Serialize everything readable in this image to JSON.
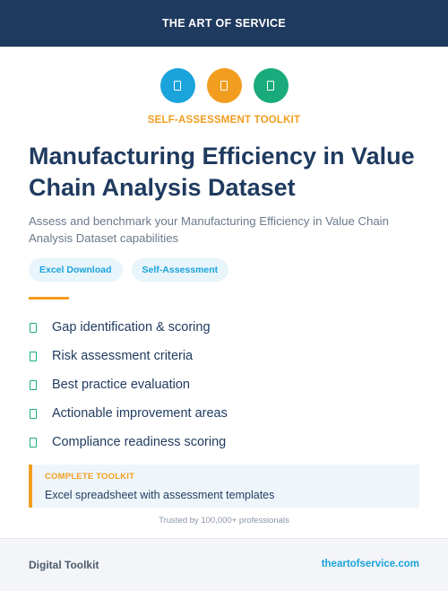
{
  "header": {
    "brand": "THE ART OF SERVICE"
  },
  "icons": [
    {
      "name": "document-icon",
      "color": "#1ba3dc"
    },
    {
      "name": "document-icon",
      "color": "#f29d1f"
    },
    {
      "name": "document-icon",
      "color": "#1aab7c"
    }
  ],
  "kicker": "SELF-ASSESSMENT TOOLKIT",
  "title": "Manufacturing Efficiency in Value Chain Analysis Dataset",
  "subtitle": "Assess and benchmark your Manufacturing Efficiency in Value Chain Analysis Dataset capabilities",
  "tags": [
    "Excel Download",
    "Self-Assessment"
  ],
  "features": [
    "Gap identification & scoring",
    "Risk assessment criteria",
    "Best practice evaluation",
    "Actionable improvement areas",
    "Compliance readiness scoring"
  ],
  "toolkit": {
    "label": "COMPLETE TOOLKIT",
    "description": "Excel spreadsheet with assessment templates"
  },
  "trusted": "Trusted by 100,000+ professionals",
  "footer": {
    "left": "Digital Toolkit",
    "right": "theartofservice.com"
  },
  "colors": {
    "navy": "#1f3a5f",
    "blue": "#1ba3dc",
    "orange": "#f29d1f",
    "green": "#1aab7c"
  }
}
